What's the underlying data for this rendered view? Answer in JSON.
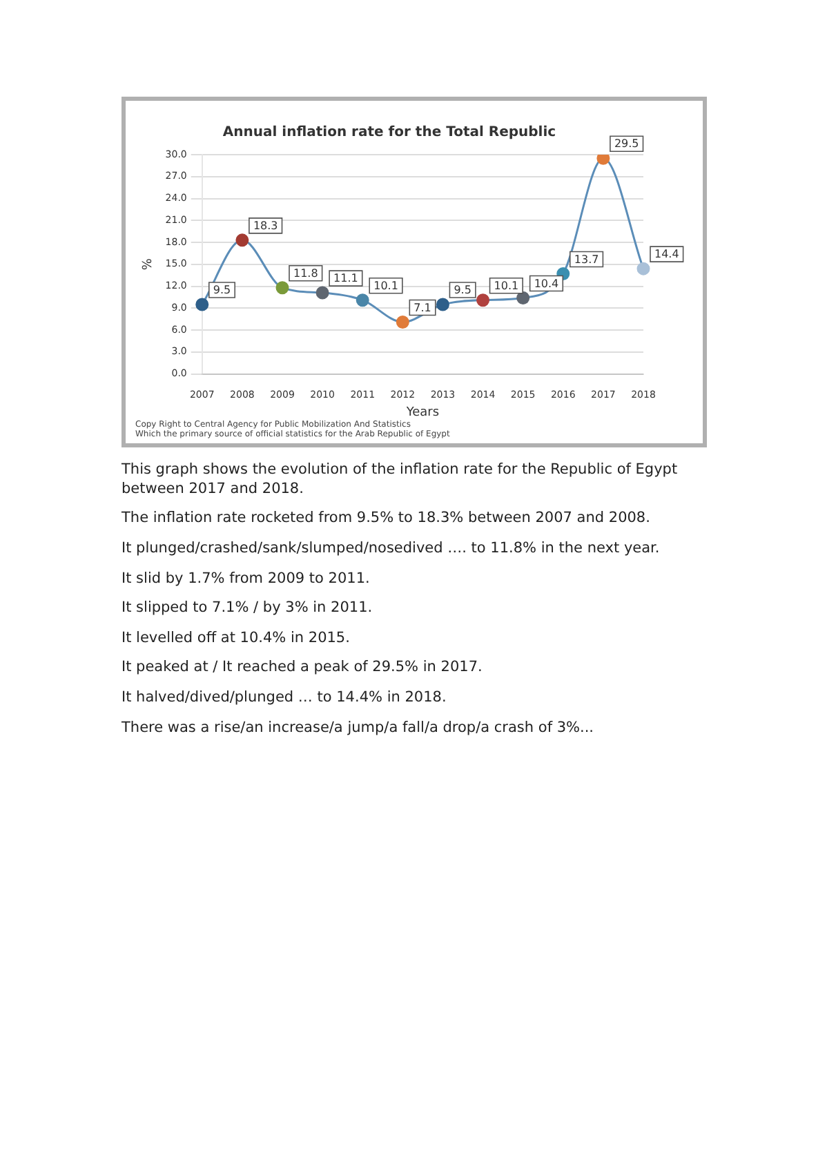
{
  "chart_data": {
    "type": "line",
    "title": "Annual inflation rate for the Total Republic",
    "xlabel": "Years",
    "ylabel": "%",
    "categories": [
      "2007",
      "2008",
      "2009",
      "2010",
      "2011",
      "2012",
      "2013",
      "2014",
      "2015",
      "2016",
      "2017",
      "2018"
    ],
    "series": [
      {
        "color": "#5b8db8",
        "values": [
          9.5,
          18.3,
          11.8,
          11.1,
          10.1,
          7.1,
          9.5,
          10.1,
          10.4,
          13.7,
          29.5,
          14.4
        ],
        "colors": [
          "#2e5f8a",
          "#a33b32",
          "#7a9a3a",
          "#5f6670",
          "#4a86a8",
          "#e07b39",
          "#2e5f8a",
          "#b0413e",
          "#5f6670",
          "#3a8fb0",
          "#e07b39",
          "#a9c0d8"
        ]
      }
    ],
    "ylim": [
      0,
      30
    ],
    "yticks": [
      {
        "value": 0,
        "label": "0.0"
      },
      {
        "value": 3,
        "label": "3.0"
      },
      {
        "value": 6,
        "label": "6.0"
      },
      {
        "value": 9,
        "label": "9.0"
      },
      {
        "value": 12,
        "label": "12.0"
      },
      {
        "value": 15,
        "label": "15.0"
      },
      {
        "value": 18,
        "label": "18.0"
      },
      {
        "value": 21,
        "label": "21.0"
      },
      {
        "value": 24,
        "label": "24.0"
      },
      {
        "value": 27,
        "label": "27.0"
      },
      {
        "value": 30,
        "label": "30.0"
      }
    ],
    "grid": "y",
    "marker": "circle",
    "line_style": "solid",
    "data_labels": true,
    "annotations": [
      "Copy Right to Central Agency for Public Mobilization And Statistics",
      "Which the primary source of official statistics for the Arab Republic of Egypt",
      "This graph shows the evolution of the inflation rate for the Republic of Egypt between 2017 and 2018.",
      "The inflation rate rocketed from 9.5% to 18.3% between 2007 and 2008.",
      "It plunged/crashed/sank/slumped/nosedived …. to 11.8% in the next year.",
      "It slid by 1.7% from 2009 to 2011.",
      "It slipped to 7.1% / by 3% in 2011.",
      "It levelled off at 10.4% in 2015.",
      "It peaked at / It reached a peak of 29.5% in 2017.",
      "It halved/dived/plunged …  to 14.4% in 2018.",
      "There was a rise/an increase/a jump/a fall/a drop/a crash of 3%..."
    ]
  }
}
